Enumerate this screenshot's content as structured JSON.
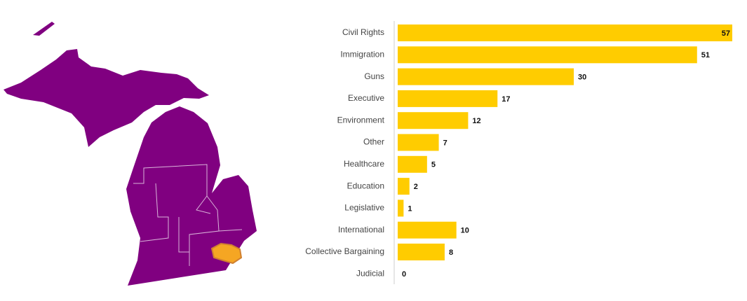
{
  "chart_data": {
    "type": "bar",
    "orientation": "horizontal",
    "categories": [
      "Civil Rights",
      "Immigration",
      "Guns",
      "Executive",
      "Environment",
      "Other",
      "Healthcare",
      "Education",
      "Legislative",
      "International",
      "Collective Bargaining",
      "Judicial"
    ],
    "values": [
      57,
      51,
      30,
      17,
      12,
      7,
      5,
      2,
      1,
      10,
      8,
      0
    ],
    "color": "#ffcc00"
  }
}
